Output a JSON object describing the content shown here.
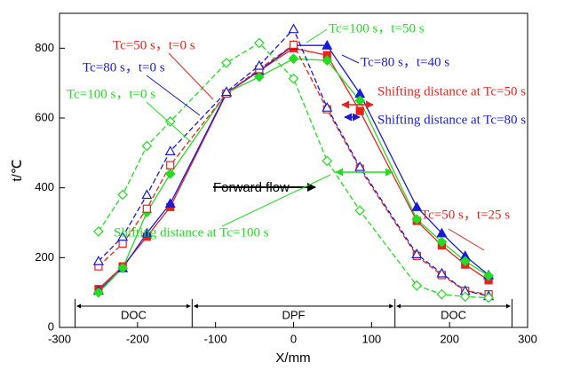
{
  "chart_data": {
    "type": "line",
    "x_label": "X/mm",
    "y_label": "t/℃",
    "x": [
      -250,
      -219,
      -188,
      -158,
      -86,
      -44,
      0,
      43,
      85,
      158,
      190,
      220,
      250
    ],
    "series": [
      {
        "name": "Tc=50 s，t=25 s",
        "color": "#e8231e",
        "marker": "square",
        "filled": true,
        "dashed": false,
        "values": [
          110,
          175,
          260,
          345,
          670,
          735,
          800,
          780,
          620,
          305,
          235,
          180,
          135
        ]
      },
      {
        "name": "Tc=80 s，t=40 s",
        "color": "#1a1ad8",
        "marker": "triangle",
        "filled": true,
        "dashed": false,
        "values": [
          105,
          170,
          270,
          355,
          672,
          735,
          808,
          808,
          670,
          345,
          270,
          205,
          150
        ]
      },
      {
        "name": "Tc=100 s，t=50 s",
        "color": "#22dd22",
        "marker": "diamond",
        "filled": true,
        "dashed": false,
        "values": [
          100,
          170,
          330,
          440,
          672,
          718,
          770,
          765,
          650,
          310,
          245,
          190,
          148
        ]
      },
      {
        "name": "Tc=50 s，t=0 s",
        "color": "#e8231e",
        "marker": "square",
        "filled": false,
        "dashed": true,
        "values": [
          175,
          240,
          340,
          465,
          670,
          740,
          810,
          625,
          455,
          205,
          150,
          105,
          95
        ]
      },
      {
        "name": "Tc=80 s，t=0 s",
        "color": "#1a1ad8",
        "marker": "triangle",
        "filled": false,
        "dashed": true,
        "values": [
          190,
          260,
          380,
          505,
          675,
          750,
          855,
          630,
          460,
          210,
          155,
          105,
          90
        ]
      },
      {
        "name": "Tc=100 s，t=0 s",
        "color": "#22dd22",
        "marker": "diamond",
        "filled": false,
        "dashed": true,
        "values": [
          275,
          380,
          520,
          590,
          758,
          815,
          713,
          477,
          335,
          120,
          95,
          88,
          85
        ]
      }
    ],
    "annotations": [
      "Shifting distance at Tc=50 s",
      "Shifting distance at Tc=80 s",
      "Forward flow",
      "Shifting distance at Tc=100 s"
    ],
    "regions": [
      "DOC",
      "DPF",
      "DOC"
    ],
    "xlim": [
      -300,
      300
    ],
    "xticks": [
      -300,
      -200,
      -100,
      0,
      100,
      200,
      300
    ],
    "ylim": [
      0,
      900
    ],
    "yticks": [
      0,
      200,
      400,
      600,
      800
    ],
    "grid": false
  }
}
